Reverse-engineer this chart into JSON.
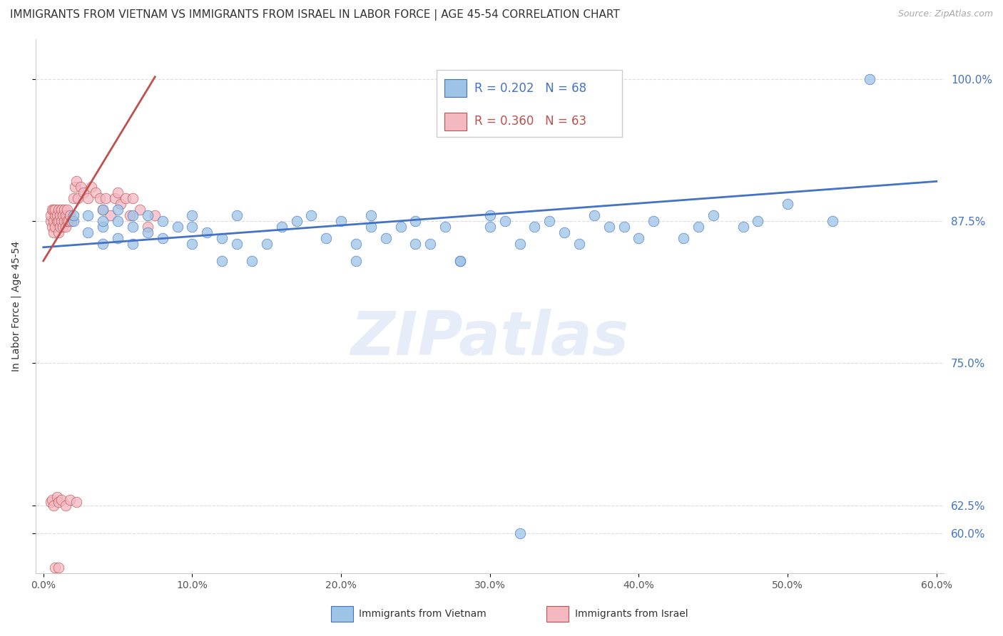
{
  "title": "IMMIGRANTS FROM VIETNAM VS IMMIGRANTS FROM ISRAEL IN LABOR FORCE | AGE 45-54 CORRELATION CHART",
  "source": "Source: ZipAtlas.com",
  "ylabel": "In Labor Force | Age 45-54",
  "x_tick_vals": [
    0.0,
    0.1,
    0.2,
    0.3,
    0.4,
    0.5,
    0.6
  ],
  "y_tick_vals": [
    0.6,
    0.625,
    0.75,
    0.875,
    1.0
  ],
  "xlim": [
    -0.005,
    0.605
  ],
  "ylim": [
    0.565,
    1.035
  ],
  "legend_entry1": {
    "color": "#9dc3e6",
    "edge": "#4472c4",
    "R": "0.202",
    "N": "68",
    "label": "Immigrants from Vietnam"
  },
  "legend_entry2": {
    "color": "#f4b8c1",
    "edge": "#c0504d",
    "R": "0.360",
    "N": "63",
    "label": "Immigrants from Israel"
  },
  "watermark": "ZIPatlas",
  "scatter_vietnam_x": [
    0.555,
    0.02,
    0.02,
    0.03,
    0.03,
    0.04,
    0.04,
    0.04,
    0.04,
    0.05,
    0.05,
    0.05,
    0.06,
    0.06,
    0.06,
    0.07,
    0.07,
    0.08,
    0.08,
    0.09,
    0.1,
    0.1,
    0.1,
    0.11,
    0.12,
    0.12,
    0.13,
    0.13,
    0.14,
    0.15,
    0.16,
    0.17,
    0.18,
    0.19,
    0.2,
    0.21,
    0.22,
    0.22,
    0.23,
    0.24,
    0.25,
    0.26,
    0.27,
    0.28,
    0.3,
    0.31,
    0.33,
    0.35,
    0.37,
    0.39,
    0.41,
    0.43,
    0.45,
    0.47,
    0.5,
    0.53,
    0.21,
    0.25,
    0.28,
    0.3,
    0.32,
    0.34,
    0.36,
    0.38,
    0.4,
    0.44,
    0.48,
    0.32
  ],
  "scatter_vietnam_y": [
    1.0,
    0.875,
    0.88,
    0.865,
    0.88,
    0.855,
    0.87,
    0.875,
    0.885,
    0.86,
    0.875,
    0.885,
    0.855,
    0.87,
    0.88,
    0.865,
    0.88,
    0.86,
    0.875,
    0.87,
    0.855,
    0.87,
    0.88,
    0.865,
    0.84,
    0.86,
    0.855,
    0.88,
    0.84,
    0.855,
    0.87,
    0.875,
    0.88,
    0.86,
    0.875,
    0.855,
    0.87,
    0.88,
    0.86,
    0.87,
    0.875,
    0.855,
    0.87,
    0.84,
    0.88,
    0.875,
    0.87,
    0.865,
    0.88,
    0.87,
    0.875,
    0.86,
    0.88,
    0.87,
    0.89,
    0.875,
    0.84,
    0.855,
    0.84,
    0.87,
    0.855,
    0.875,
    0.855,
    0.87,
    0.86,
    0.87,
    0.875,
    0.6
  ],
  "scatter_israel_x": [
    0.005,
    0.005,
    0.006,
    0.006,
    0.007,
    0.007,
    0.007,
    0.008,
    0.008,
    0.008,
    0.009,
    0.009,
    0.01,
    0.01,
    0.01,
    0.011,
    0.011,
    0.012,
    0.012,
    0.013,
    0.013,
    0.014,
    0.014,
    0.015,
    0.015,
    0.016,
    0.016,
    0.017,
    0.018,
    0.019,
    0.02,
    0.021,
    0.022,
    0.023,
    0.025,
    0.027,
    0.03,
    0.032,
    0.035,
    0.038,
    0.04,
    0.042,
    0.045,
    0.048,
    0.05,
    0.052,
    0.055,
    0.058,
    0.06,
    0.065,
    0.07,
    0.075,
    0.005,
    0.006,
    0.007,
    0.009,
    0.01,
    0.012,
    0.015,
    0.018,
    0.022,
    0.008,
    0.01
  ],
  "scatter_israel_y": [
    0.875,
    0.88,
    0.87,
    0.885,
    0.865,
    0.875,
    0.885,
    0.87,
    0.88,
    0.885,
    0.875,
    0.88,
    0.865,
    0.875,
    0.885,
    0.87,
    0.88,
    0.875,
    0.885,
    0.87,
    0.88,
    0.875,
    0.885,
    0.87,
    0.88,
    0.875,
    0.885,
    0.875,
    0.88,
    0.875,
    0.895,
    0.905,
    0.91,
    0.895,
    0.905,
    0.9,
    0.895,
    0.905,
    0.9,
    0.895,
    0.885,
    0.895,
    0.88,
    0.895,
    0.9,
    0.89,
    0.895,
    0.88,
    0.895,
    0.885,
    0.87,
    0.88,
    0.628,
    0.63,
    0.625,
    0.632,
    0.628,
    0.63,
    0.625,
    0.63,
    0.628,
    0.57,
    0.57
  ],
  "background_color": "#ffffff",
  "grid_color": "#dddddd",
  "line_color_vietnam": "#4472c4",
  "line_color_israel": "#c0504d",
  "scatter_color_vietnam": "#9dc3e6",
  "scatter_color_israel": "#f4b8c1",
  "title_fontsize": 11,
  "source_fontsize": 9,
  "axis_label_fontsize": 10,
  "tick_fontsize": 10,
  "legend_fontsize": 12
}
